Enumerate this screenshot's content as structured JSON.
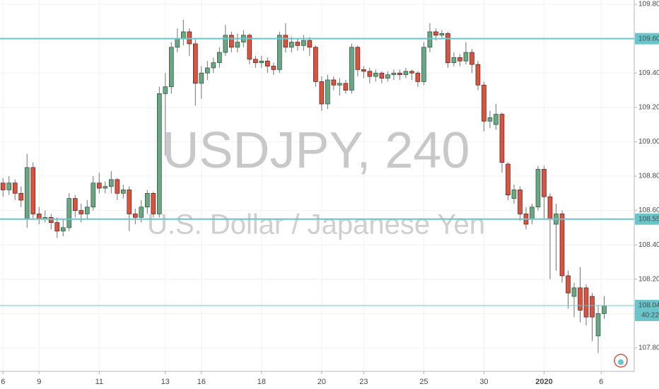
{
  "chart_data": {
    "type": "candlestick",
    "watermark_title": "USDJPY, 240",
    "watermark_subtitle": "U.S. Dollar / Japanese Yen",
    "x": [
      0,
      1,
      2,
      3,
      4,
      5,
      6,
      7,
      8,
      9,
      10,
      11,
      12,
      13,
      14,
      15,
      16,
      17,
      18,
      19,
      20,
      21,
      22,
      23,
      24,
      25,
      26,
      27,
      28,
      29,
      30,
      31,
      32,
      33,
      34,
      35,
      36,
      37,
      38,
      39,
      40,
      41,
      42,
      43,
      44,
      45,
      46,
      47,
      48,
      49,
      50,
      51,
      52,
      53,
      54,
      55,
      56,
      57,
      58,
      59,
      60,
      61,
      62,
      63,
      64,
      65,
      66,
      67,
      68,
      69,
      70,
      71,
      72,
      73,
      74,
      75,
      76,
      77,
      78,
      79,
      80,
      81,
      82,
      83,
      84,
      85,
      86,
      87,
      88,
      89,
      90,
      91,
      92,
      93,
      94,
      95,
      96,
      97,
      98,
      99,
      100
    ],
    "open": [
      108.76,
      108.72,
      108.76,
      108.7,
      108.55,
      108.85,
      108.58,
      108.55,
      108.56,
      108.53,
      108.48,
      108.5,
      108.67,
      108.6,
      108.58,
      108.62,
      108.76,
      108.73,
      108.74,
      108.78,
      108.7,
      108.72,
      108.58,
      108.56,
      108.62,
      108.7,
      108.58,
      109.28,
      109.32,
      109.55,
      109.6,
      109.64,
      109.57,
      109.34,
      109.4,
      109.43,
      109.46,
      109.52,
      109.62,
      109.55,
      109.58,
      109.62,
      109.48,
      109.46,
      109.47,
      109.44,
      109.42,
      109.62,
      109.55,
      109.58,
      109.56,
      109.59,
      109.55,
      109.35,
      109.22,
      109.36,
      109.33,
      109.34,
      109.3,
      109.55,
      109.42,
      109.41,
      109.38,
      109.4,
      109.37,
      109.39,
      109.4,
      109.39,
      109.41,
      109.4,
      109.35,
      109.55,
      109.64,
      109.62,
      109.63,
      109.46,
      109.49,
      109.47,
      109.52,
      109.45,
      109.33,
      109.12,
      109.1,
      109.16,
      108.87,
      108.67,
      108.72,
      108.58,
      108.55,
      108.62,
      108.84,
      108.68,
      108.52,
      108.58,
      108.22,
      108.1,
      108.15,
      108.15,
      108.1,
      107.87,
      108.0
    ],
    "high": [
      108.79,
      108.8,
      108.78,
      108.74,
      108.93,
      108.88,
      108.62,
      108.6,
      108.58,
      108.56,
      108.55,
      108.7,
      108.69,
      108.64,
      108.66,
      108.8,
      108.82,
      108.77,
      108.83,
      108.79,
      108.75,
      108.74,
      108.61,
      108.66,
      108.72,
      108.71,
      109.32,
      109.4,
      109.58,
      109.66,
      109.71,
      109.66,
      109.6,
      109.44,
      109.47,
      109.49,
      109.55,
      109.68,
      109.64,
      109.63,
      109.65,
      109.63,
      109.5,
      109.5,
      109.49,
      109.46,
      109.64,
      109.69,
      109.61,
      109.6,
      109.62,
      109.61,
      109.56,
      109.38,
      109.39,
      109.38,
      109.37,
      109.36,
      109.57,
      109.56,
      109.44,
      109.43,
      109.42,
      109.41,
      109.41,
      109.42,
      109.42,
      109.43,
      109.42,
      109.41,
      109.58,
      109.69,
      109.66,
      109.65,
      109.64,
      109.52,
      109.51,
      109.58,
      109.54,
      109.47,
      109.35,
      109.18,
      109.22,
      109.17,
      108.88,
      108.75,
      108.74,
      108.62,
      108.64,
      108.86,
      108.86,
      108.7,
      108.64,
      108.6,
      108.25,
      108.18,
      108.27,
      108.17,
      108.12,
      108.05,
      108.1
    ],
    "low": [
      108.68,
      108.69,
      108.66,
      108.62,
      108.5,
      108.55,
      108.52,
      108.53,
      108.49,
      108.44,
      108.45,
      108.48,
      108.56,
      108.53,
      108.55,
      108.6,
      108.7,
      108.7,
      108.7,
      108.66,
      108.67,
      108.48,
      108.52,
      108.53,
      108.58,
      108.56,
      108.56,
      108.92,
      109.28,
      109.52,
      109.56,
      109.5,
      109.21,
      109.25,
      109.36,
      109.4,
      109.43,
      109.5,
      109.52,
      109.52,
      109.55,
      109.45,
      109.43,
      109.43,
      109.4,
      109.39,
      109.4,
      109.52,
      109.52,
      109.53,
      109.53,
      109.5,
      109.32,
      109.18,
      109.19,
      109.3,
      109.27,
      109.28,
      109.28,
      109.38,
      109.37,
      109.34,
      109.35,
      109.34,
      109.35,
      109.36,
      109.36,
      109.37,
      109.36,
      109.32,
      109.33,
      109.52,
      109.59,
      109.6,
      109.43,
      109.44,
      109.44,
      109.45,
      109.4,
      109.3,
      109.06,
      109.08,
      109.07,
      108.82,
      108.66,
      108.64,
      108.54,
      108.49,
      108.52,
      108.6,
      108.55,
      108.2,
      108.25,
      108.18,
      108.03,
      107.98,
      107.95,
      107.93,
      107.84,
      107.77,
      107.97
    ],
    "close": [
      108.72,
      108.76,
      108.7,
      108.66,
      108.85,
      108.58,
      108.55,
      108.56,
      108.53,
      108.48,
      108.5,
      108.67,
      108.6,
      108.58,
      108.62,
      108.76,
      108.73,
      108.74,
      108.78,
      108.7,
      108.72,
      108.58,
      108.56,
      108.62,
      108.7,
      108.58,
      109.28,
      109.32,
      109.55,
      109.6,
      109.64,
      109.57,
      109.34,
      109.4,
      109.43,
      109.46,
      109.52,
      109.62,
      109.55,
      109.58,
      109.62,
      109.48,
      109.46,
      109.47,
      109.44,
      109.42,
      109.62,
      109.55,
      109.58,
      109.56,
      109.59,
      109.55,
      109.35,
      109.22,
      109.36,
      109.33,
      109.34,
      109.3,
      109.55,
      109.42,
      109.41,
      109.38,
      109.4,
      109.37,
      109.39,
      109.4,
      109.39,
      109.41,
      109.4,
      109.35,
      109.55,
      109.64,
      109.62,
      109.63,
      109.46,
      109.49,
      109.47,
      109.52,
      109.45,
      109.33,
      109.12,
      109.14,
      109.16,
      108.88,
      108.69,
      108.72,
      108.58,
      108.52,
      108.62,
      108.84,
      108.68,
      108.55,
      108.58,
      108.22,
      108.12,
      108.15,
      108.02,
      107.98,
      107.98,
      108.0,
      108.047
    ],
    "up_color": "#6ba583",
    "down_color": "#d75442",
    "xlim": [
      -0.5,
      105
    ],
    "ylim": [
      107.664,
      109.825
    ],
    "xticks": [
      {
        "value": 0,
        "label": "6"
      },
      {
        "value": 6,
        "label": "9"
      },
      {
        "value": 16,
        "label": "11"
      },
      {
        "value": 27,
        "label": "13"
      },
      {
        "value": 33,
        "label": "16"
      },
      {
        "value": 43,
        "label": "18"
      },
      {
        "value": 53,
        "label": "20"
      },
      {
        "value": 60,
        "label": "23"
      },
      {
        "value": 70,
        "label": "25"
      },
      {
        "value": 80,
        "label": "30"
      },
      {
        "value": 90,
        "label": "2020"
      },
      {
        "value": 99.5,
        "label": "6"
      }
    ],
    "yticks": [
      {
        "value": 107.8,
        "label": "107.800"
      },
      {
        "value": 108.0,
        "label": "108.000"
      },
      {
        "value": 108.2,
        "label": "108.200"
      },
      {
        "value": 108.4,
        "label": "108.400"
      },
      {
        "value": 108.6,
        "label": "108.600"
      },
      {
        "value": 108.8,
        "label": "108.800"
      },
      {
        "value": 109.0,
        "label": "109.000"
      },
      {
        "value": 109.2,
        "label": "109.200"
      },
      {
        "value": 109.4,
        "label": "109.400"
      },
      {
        "value": 109.6,
        "label": "109.600"
      },
      {
        "value": 109.8,
        "label": "109.800"
      }
    ],
    "levels": [
      {
        "value": 109.6,
        "label": "109.600"
      },
      {
        "value": 108.55,
        "label": "108.550"
      }
    ],
    "last_price_label": "108.047",
    "countdown": "40:22",
    "level_color": "#69c5c9",
    "grid": true
  }
}
